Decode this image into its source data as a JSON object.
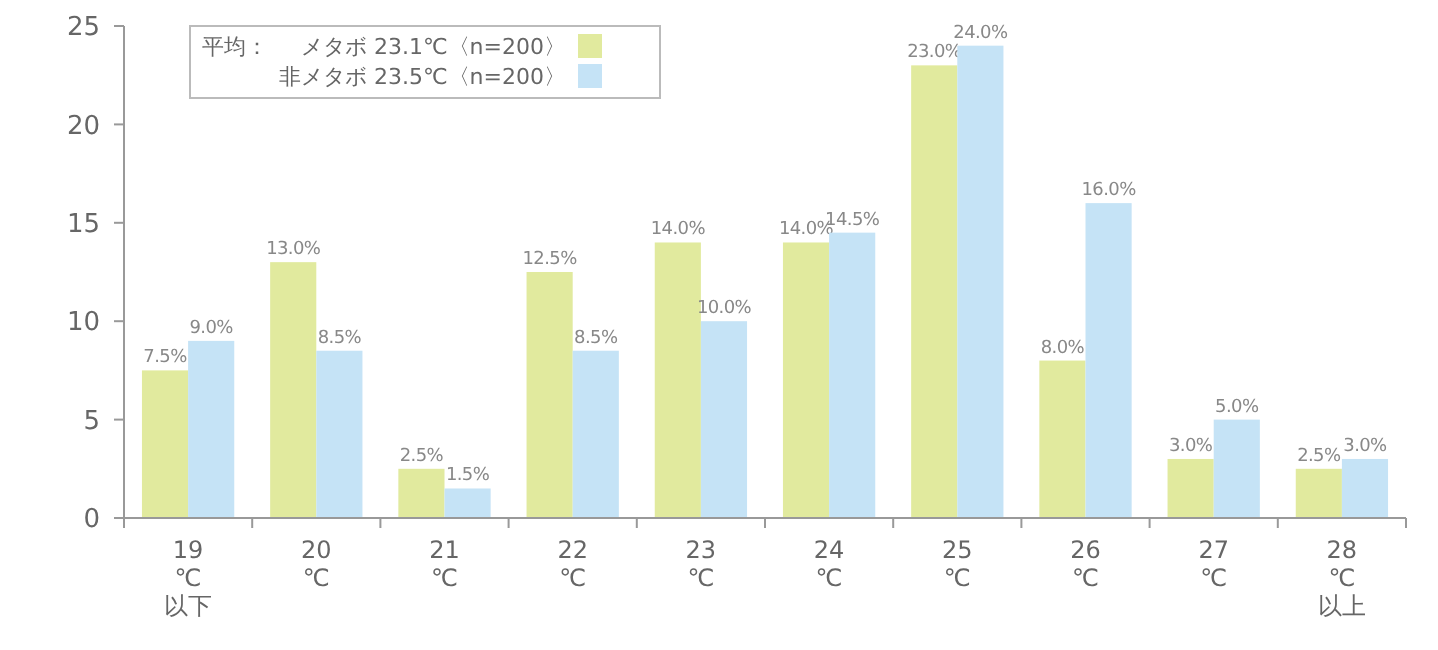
{
  "chart_data": {
    "type": "bar",
    "categories": [
      "19\n℃\n以下",
      "20\n℃",
      "21\n℃",
      "22\n℃",
      "23\n℃",
      "24\n℃",
      "25\n℃",
      "26\n℃",
      "27\n℃",
      "28\n℃\n以上"
    ],
    "series": [
      {
        "name": "メタボ 23.1℃〈n=200〉",
        "color": "#e1ea9e",
        "values": [
          7.5,
          13.0,
          2.5,
          12.5,
          14.0,
          14.0,
          23.0,
          8.0,
          3.0,
          2.5
        ],
        "value_labels": [
          "7.5%",
          "13.0%",
          "2.5%",
          "12.5%",
          "14.0%",
          "14.0%",
          "23.0%",
          "8.0%",
          "3.0%",
          "2.5%"
        ]
      },
      {
        "name": "非メタボ 23.5℃〈n=200〉",
        "color": "#c5e3f6",
        "values": [
          9.0,
          8.5,
          1.5,
          8.5,
          10.0,
          14.5,
          24.0,
          16.0,
          5.0,
          3.0
        ],
        "value_labels": [
          "9.0%",
          "8.5%",
          "1.5%",
          "8.5%",
          "10.0%",
          "14.5%",
          "24.0%",
          "16.0%",
          "5.0%",
          "3.0%"
        ]
      }
    ],
    "legend_title": "平均：",
    "legend": "top left",
    "ylim": [
      0,
      25
    ],
    "yticks": [
      0,
      5,
      10,
      15,
      20,
      25
    ],
    "grid": false
  }
}
